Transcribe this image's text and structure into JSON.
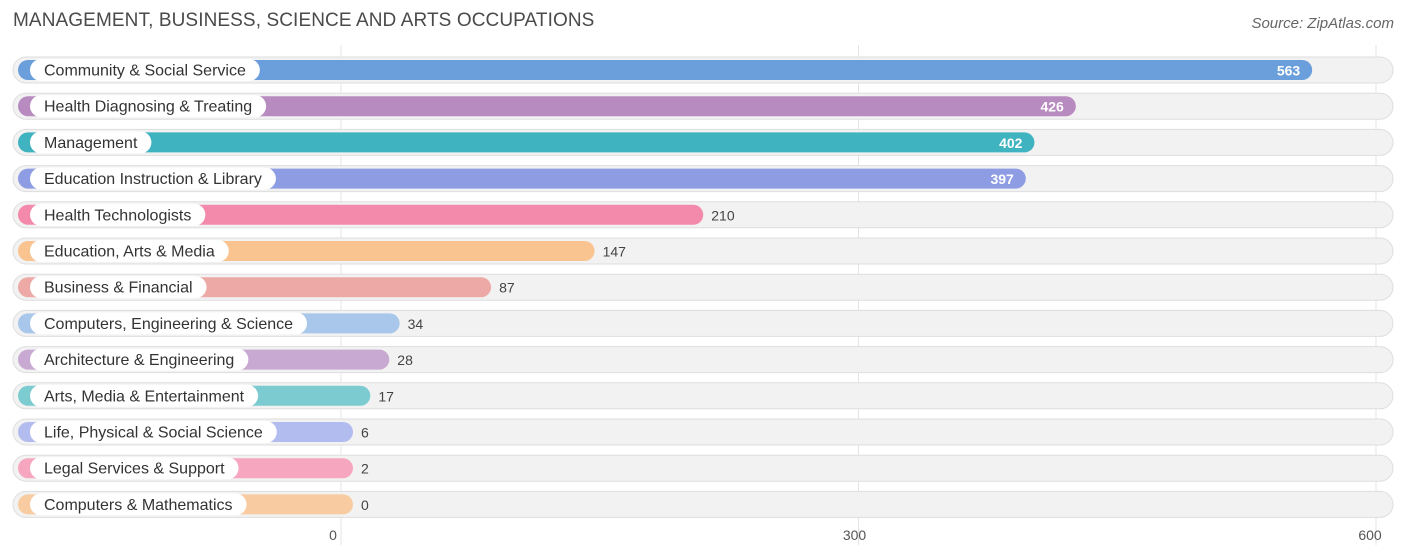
{
  "header": {
    "title": "MANAGEMENT, BUSINESS, SCIENCE AND ARTS OCCUPATIONS",
    "source": "Source: ZipAtlas.com"
  },
  "chart_data": {
    "type": "bar",
    "orientation": "horizontal",
    "categories": [
      "Community & Social Service",
      "Health Diagnosing & Treating",
      "Management",
      "Education Instruction & Library",
      "Health Technologists",
      "Education, Arts & Media",
      "Business & Financial",
      "Computers, Engineering & Science",
      "Architecture & Engineering",
      "Arts, Media & Entertainment",
      "Life, Physical & Social Science",
      "Legal Services & Support",
      "Computers & Mathematics"
    ],
    "values": [
      563,
      426,
      402,
      397,
      210,
      147,
      87,
      34,
      28,
      17,
      6,
      2,
      0
    ],
    "colors": [
      "#6a9fdc",
      "#b78bbf",
      "#3fb3bf",
      "#8e9de3",
      "#f48aab",
      "#f9c48f",
      "#eda9a5",
      "#a9c7ea",
      "#c8a9d1",
      "#7ccbd0",
      "#b3bcee",
      "#f6a6bf",
      "#f9cba1"
    ],
    "value_label_inside_color": "#ffffff",
    "value_label_outside_color": "#444444",
    "xlim": [
      0,
      600
    ],
    "x_ticks": [
      0,
      300,
      600
    ],
    "grid": true
  }
}
